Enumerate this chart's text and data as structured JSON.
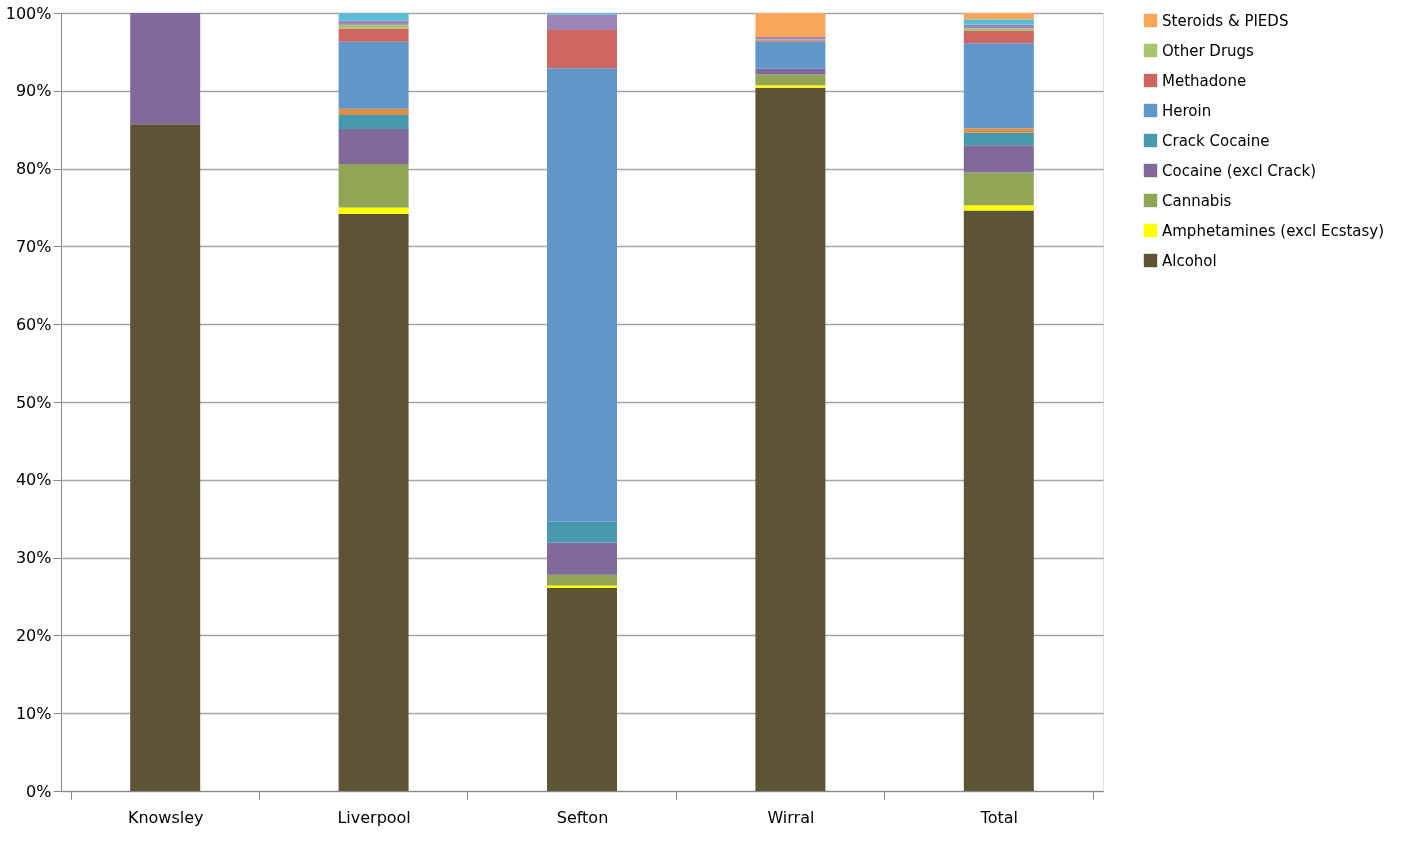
{
  "chart_data": {
    "type": "bar",
    "stacked": true,
    "categories": [
      "Knowsley",
      "Liverpool",
      "Sefton",
      "Wirral",
      "Total"
    ],
    "series": [
      {
        "name": "Alcohol",
        "color": "#5c5434",
        "values": [
          85.7,
          74.2,
          26.1,
          90.4,
          74.6
        ]
      },
      {
        "name": "Amphetamines (excl Ecstasy)",
        "color": "#ffff00",
        "values": [
          null,
          0.8,
          0.3,
          0.3,
          0.7
        ]
      },
      {
        "name": "Cannabis",
        "color": "#92a557",
        "values": [
          null,
          5.6,
          1.4,
          1.4,
          4.2
        ]
      },
      {
        "name": "Cocaine (excl Crack)",
        "color": "#7f6a9a",
        "values": [
          14.3,
          4.5,
          4.1,
          0.7,
          3.5
        ]
      },
      {
        "name": "Crack Cocaine",
        "color": "#4799ad",
        "values": [
          null,
          1.8,
          2.7,
          0.1,
          1.6
        ]
      },
      {
        "color": "#db8f45",
        "values": [
          null,
          0.8,
          null,
          null,
          0.6
        ]
      },
      {
        "name": "Heroin",
        "color": "#6096ca",
        "values": [
          null,
          8.6,
          58.3,
          3.4,
          10.9
        ]
      },
      {
        "name": "Methadone",
        "color": "#cd6560",
        "values": [
          null,
          1.7,
          4.9,
          0.2,
          1.6
        ]
      },
      {
        "name": "Other Drugs",
        "color": "#a6c66b",
        "values": [
          null,
          0.5,
          null,
          0.1,
          0.3
        ]
      },
      {
        "color": "#9b85b9",
        "values": [
          null,
          0.5,
          2.0,
          0.3,
          0.5
        ]
      },
      {
        "color": "#5bbcd6",
        "values": [
          null,
          1.0,
          0.2,
          null,
          0.7
        ]
      },
      {
        "name": "Steroids & PIEDS",
        "color": "#fba75b",
        "values": [
          null,
          null,
          null,
          3.1,
          0.8
        ]
      }
    ],
    "ylim": [
      0,
      100
    ],
    "yticks": [
      {
        "value": 0,
        "label": "0%"
      },
      {
        "value": 10,
        "label": "10%"
      },
      {
        "value": 20,
        "label": "20%"
      },
      {
        "value": 30,
        "label": "30%"
      },
      {
        "value": 40,
        "label": "40%"
      },
      {
        "value": 50,
        "label": "50%"
      },
      {
        "value": 60,
        "label": "60%"
      },
      {
        "value": 70,
        "label": "70%"
      },
      {
        "value": 80,
        "label": "80%"
      },
      {
        "value": 90,
        "label": "90%"
      },
      {
        "value": 100,
        "label": "100%"
      }
    ],
    "grid": "y",
    "legend": "right"
  }
}
